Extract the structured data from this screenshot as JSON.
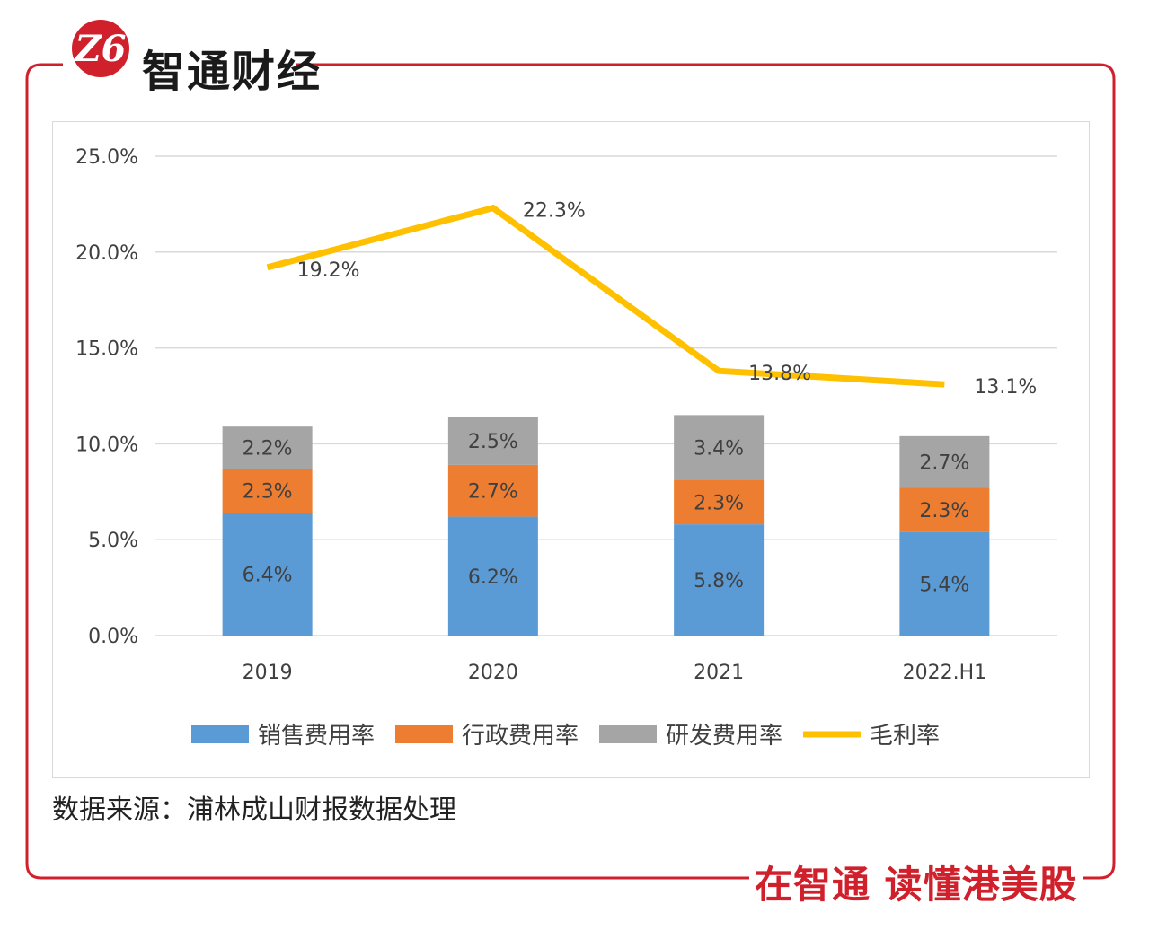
{
  "brand": {
    "logo_glyph": "Z6",
    "name": "智通财经",
    "slogan": "在智通  读懂港美股",
    "accent_color": "#d0202c"
  },
  "source_note": "数据来源：浦林成山财报数据处理",
  "chart_data": {
    "type": "bar",
    "stacked": true,
    "title": "",
    "xlabel": "",
    "ylabel": "",
    "categories": [
      "2019",
      "2020",
      "2021",
      "2022.H1"
    ],
    "ylim": [
      0,
      25
    ],
    "yticks": [
      "0.0%",
      "5.0%",
      "10.0%",
      "15.0%",
      "20.0%",
      "25.0%"
    ],
    "ytick_values": [
      0,
      5,
      10,
      15,
      20,
      25
    ],
    "grid": true,
    "legend_position": "bottom",
    "series": [
      {
        "name": "销售费用率",
        "kind": "bar",
        "color": "#5b9bd5",
        "values": [
          6.4,
          6.2,
          5.8,
          5.4
        ],
        "labels": [
          "6.4%",
          "6.2%",
          "5.8%",
          "5.4%"
        ]
      },
      {
        "name": "行政费用率",
        "kind": "bar",
        "color": "#ed7d31",
        "values": [
          2.3,
          2.7,
          2.3,
          2.3
        ],
        "labels": [
          "2.3%",
          "2.7%",
          "2.3%",
          "2.3%"
        ]
      },
      {
        "name": "研发费用率",
        "kind": "bar",
        "color": "#a5a5a5",
        "values": [
          2.2,
          2.5,
          3.4,
          2.7
        ],
        "labels": [
          "2.2%",
          "2.5%",
          "3.4%",
          "2.7%"
        ]
      },
      {
        "name": "毛利率",
        "kind": "line",
        "color": "#ffc000",
        "values": [
          19.2,
          22.3,
          13.8,
          13.1
        ],
        "labels": [
          "19.2%",
          "22.3%",
          "13.8%",
          "13.1%"
        ]
      }
    ]
  }
}
